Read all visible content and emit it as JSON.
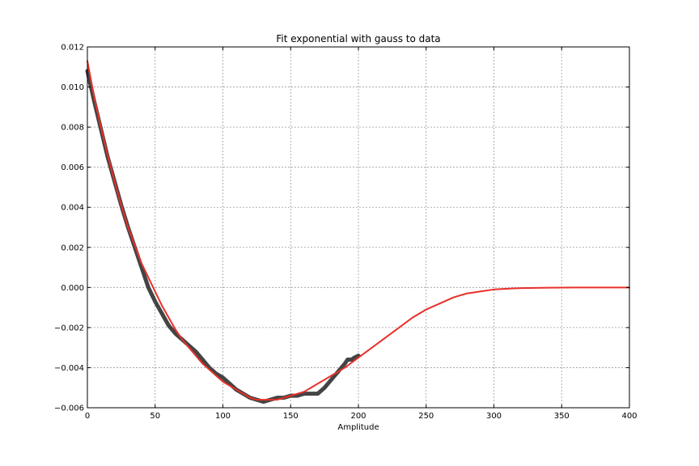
{
  "chart_data": {
    "type": "line",
    "title": "Fit exponential with gauss to data",
    "xlabel": "Amplitude",
    "ylabel": "",
    "xlim": [
      0,
      400
    ],
    "ylim": [
      -0.006,
      0.012
    ],
    "grid": true,
    "x_ticks": [
      "0",
      "50",
      "100",
      "150",
      "200",
      "250",
      "300",
      "350",
      "400"
    ],
    "y_ticks": [
      "−0.006",
      "−0.004",
      "−0.002",
      "0.000",
      "0.002",
      "0.004",
      "0.006",
      "0.008",
      "0.010",
      "0.012"
    ],
    "series": [
      {
        "color": "#444444",
        "x": [
          0,
          5,
          10,
          15,
          20,
          25,
          30,
          35,
          40,
          45,
          50,
          55,
          60,
          65,
          70,
          75,
          80,
          85,
          90,
          95,
          100,
          105,
          110,
          115,
          120,
          125,
          130,
          135,
          140,
          145,
          150,
          155,
          160,
          165,
          170,
          175,
          180,
          185,
          190,
          192,
          195,
          197,
          200
        ],
        "y": [
          0.0108,
          0.0093,
          0.0079,
          0.0065,
          0.0053,
          0.0041,
          0.003,
          0.002,
          0.001,
          0.0,
          -0.0007,
          -0.0013,
          -0.0019,
          -0.0023,
          -0.0026,
          -0.0029,
          -0.0032,
          -0.0036,
          -0.004,
          -0.0043,
          -0.0045,
          -0.0048,
          -0.0051,
          -0.0053,
          -0.0055,
          -0.0056,
          -0.0057,
          -0.0056,
          -0.0055,
          -0.0055,
          -0.0054,
          -0.0054,
          -0.0053,
          -0.0053,
          -0.0053,
          -0.005,
          -0.0046,
          -0.0042,
          -0.0038,
          -0.0036,
          -0.0036,
          -0.0035,
          -0.0034
        ]
      },
      {
        "color": "#e8302a",
        "x": [
          0,
          5,
          10,
          15,
          20,
          25,
          30,
          35,
          40,
          45,
          50,
          55,
          60,
          65,
          70,
          75,
          80,
          85,
          90,
          95,
          100,
          105,
          110,
          115,
          120,
          125,
          130,
          135,
          140,
          145,
          150,
          155,
          160,
          165,
          170,
          175,
          180,
          190,
          200,
          210,
          220,
          230,
          240,
          250,
          260,
          270,
          280,
          290,
          300,
          310,
          320,
          330,
          340,
          350,
          360,
          370,
          380,
          390,
          400
        ],
        "y": [
          0.0113,
          0.0095,
          0.008,
          0.0066,
          0.0053,
          0.0041,
          0.003,
          0.0021,
          0.0012,
          0.0005,
          -0.0002,
          -0.0009,
          -0.0015,
          -0.0021,
          -0.0026,
          -0.003,
          -0.0034,
          -0.0038,
          -0.0041,
          -0.0044,
          -0.0047,
          -0.0049,
          -0.0051,
          -0.0053,
          -0.0055,
          -0.0056,
          -0.0056,
          -0.0056,
          -0.0056,
          -0.0055,
          -0.0054,
          -0.0053,
          -0.0052,
          -0.005,
          -0.0048,
          -0.0046,
          -0.0044,
          -0.004,
          -0.0035,
          -0.003,
          -0.0025,
          -0.002,
          -0.0015,
          -0.0011,
          -0.0008,
          -0.0005,
          -0.0003,
          -0.0002,
          -0.0001,
          -6e-05,
          -3e-05,
          -2e-05,
          -1e-05,
          -5e-06,
          -2e-06,
          -1e-06,
          0.0,
          0.0,
          0.0
        ]
      }
    ]
  }
}
